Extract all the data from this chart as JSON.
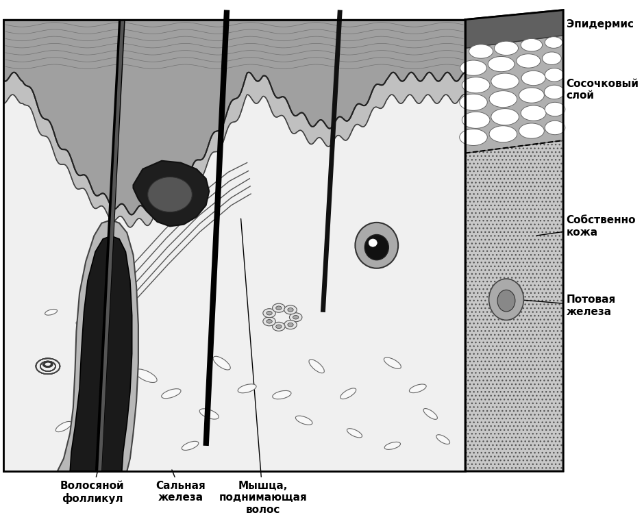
{
  "bg_color": "#ffffff",
  "labels": {
    "epidermis": "Эпидермис",
    "papillary": "Сосочковый\nслой",
    "dermis": "Собственно\nкожа",
    "sweat": "Потовая\nжелеза",
    "follicle": "Волосяной\nфолликул",
    "sebaceous": "Сальная\nжелеза",
    "muscle": "Мышца,\nподнимающая\nволос"
  }
}
